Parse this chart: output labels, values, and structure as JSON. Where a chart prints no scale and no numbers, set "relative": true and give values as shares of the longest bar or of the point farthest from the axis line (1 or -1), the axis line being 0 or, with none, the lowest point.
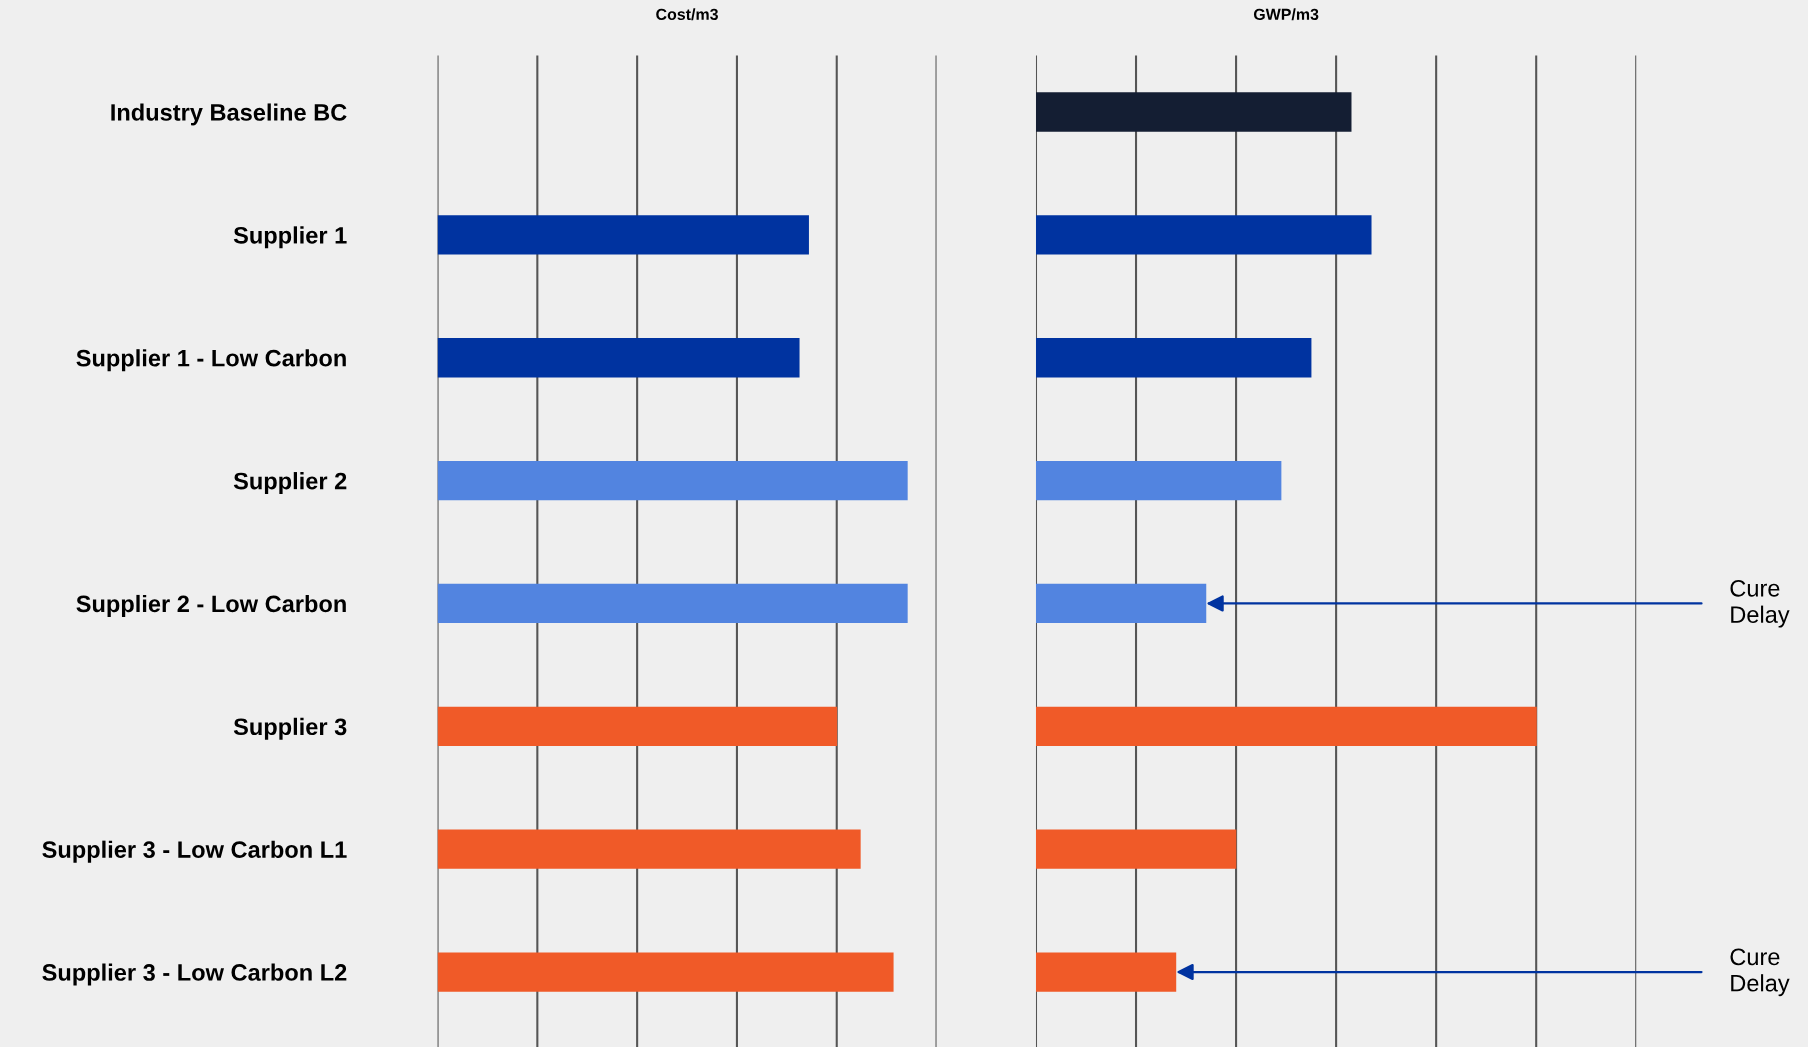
{
  "chart_data": [
    {
      "type": "bar",
      "orientation": "horizontal",
      "relative": true,
      "title": "Cost/m3",
      "grid": "x",
      "tick_labels": "y",
      "categories": [
        "Industry Baseline BC",
        "Supplier 1",
        "Supplier 1 - Low Carbon",
        "Supplier 2",
        "Supplier 2 - Low Carbon",
        "Supplier 3",
        "Supplier 3 - Low Carbon L1",
        "Supplier 3 - Low Carbon L2"
      ],
      "values": [
        null,
        0.79,
        0.77,
        1,
        1,
        0.85,
        0.9,
        0.97
      ],
      "colors": [
        "#141e33",
        "#0033a0",
        "#0033a0",
        "#5284e0",
        "#5284e0",
        "#f05a28",
        "#f05a28",
        "#f05a28"
      ]
    },
    {
      "type": "bar",
      "orientation": "horizontal",
      "relative": true,
      "title": "GWP/m3",
      "grid": "x",
      "tick_labels": false,
      "categories": [
        "Industry Baseline BC",
        "Supplier 1",
        "Supplier 1 - Low Carbon",
        "Supplier 2",
        "Supplier 2 - Low Carbon",
        "Supplier 3",
        "Supplier 3 - Low Carbon L1",
        "Supplier 3 - Low Carbon L2"
      ],
      "values": [
        0.63,
        0.67,
        0.55,
        0.49,
        0.34,
        1,
        0.4,
        0.28
      ],
      "colors": [
        "#141e33",
        "#0033a0",
        "#0033a0",
        "#5284e0",
        "#5284e0",
        "#f05a28",
        "#f05a28",
        "#f05a28"
      ],
      "annotations": [
        {
          "text": "Cure\nDelay",
          "x": 0.34,
          "y": "Supplier 2 - Low Carbon"
        },
        {
          "text": "Cure\nDelay",
          "x": 0.28,
          "y": "Supplier 3 - Low Carbon L2"
        }
      ]
    }
  ]
}
